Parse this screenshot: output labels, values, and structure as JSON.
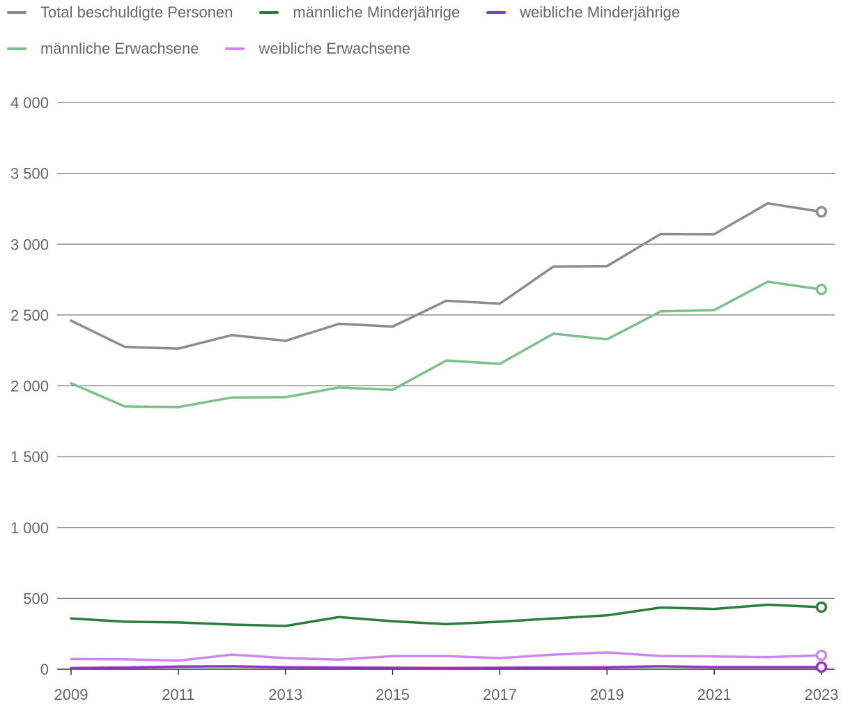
{
  "chart_data": {
    "type": "line",
    "categories": [
      "2009",
      "2010",
      "2011",
      "2012",
      "2013",
      "2014",
      "2015",
      "2016",
      "2017",
      "2018",
      "2019",
      "2020",
      "2021",
      "2022",
      "2023"
    ],
    "x_tick_labels": [
      "2009",
      "2011",
      "2013",
      "2015",
      "2017",
      "2019",
      "2021",
      "2023"
    ],
    "y_tick_labels": [
      "0",
      "500",
      "1 000",
      "1 500",
      "2 000",
      "2 500",
      "3 000",
      "3 500",
      "4 000"
    ],
    "ylim": [
      0,
      4000
    ],
    "legend_position": "top",
    "grid": true,
    "series": [
      {
        "name": "Total beschuldigte Personen",
        "color": "#8c8c8c",
        "values": [
          2460,
          2275,
          2262,
          2358,
          2318,
          2438,
          2418,
          2600,
          2580,
          2842,
          2845,
          3072,
          3070,
          3288,
          3228
        ]
      },
      {
        "name": "männliche Minderjährige",
        "color": "#2e7d3c",
        "values": [
          358,
          335,
          330,
          315,
          305,
          368,
          338,
          318,
          335,
          358,
          380,
          435,
          425,
          455,
          438
        ]
      },
      {
        "name": "weibliche Minderjährige",
        "color": "#9b2fcf",
        "values": [
          8,
          12,
          18,
          20,
          14,
          12,
          10,
          8,
          10,
          12,
          14,
          20,
          15,
          15,
          15
        ]
      },
      {
        "name": "männliche Erwachsene",
        "color": "#7fbf8a",
        "values": [
          2018,
          1855,
          1850,
          1918,
          1920,
          1988,
          1972,
          2178,
          2155,
          2368,
          2328,
          2525,
          2535,
          2735,
          2680
        ]
      },
      {
        "name": "weibliche Erwachsene",
        "color": "#cc88ee",
        "values": [
          72,
          70,
          60,
          103,
          78,
          68,
          92,
          92,
          78,
          103,
          118,
          93,
          90,
          85,
          98
        ]
      }
    ]
  }
}
